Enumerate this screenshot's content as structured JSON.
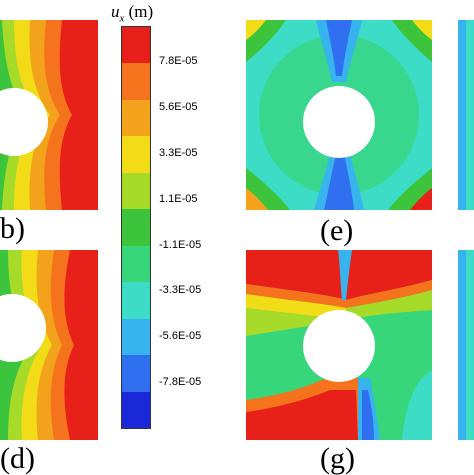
{
  "legend": {
    "symbol": "u",
    "subscript": "x",
    "unit": "(m)",
    "colors": [
      "#e8201a",
      "#f5731c",
      "#f3a21c",
      "#f2dc18",
      "#a6db2a",
      "#3cc43c",
      "#38d67a",
      "#3ddcc6",
      "#37b3ee",
      "#2f6ff0",
      "#1a28d8"
    ],
    "ticks": [
      "7.8E-05",
      "5.6E-05",
      "3.3E-05",
      "1.1E-05",
      "-1.1E-05",
      "-3.3E-05",
      "-5.6E-05",
      "-7.8E-05"
    ]
  },
  "panels": {
    "b": {
      "label": "b)"
    },
    "d": {
      "label": "(d)"
    },
    "e": {
      "label": "(e)"
    },
    "g": {
      "label": "(g)"
    }
  }
}
